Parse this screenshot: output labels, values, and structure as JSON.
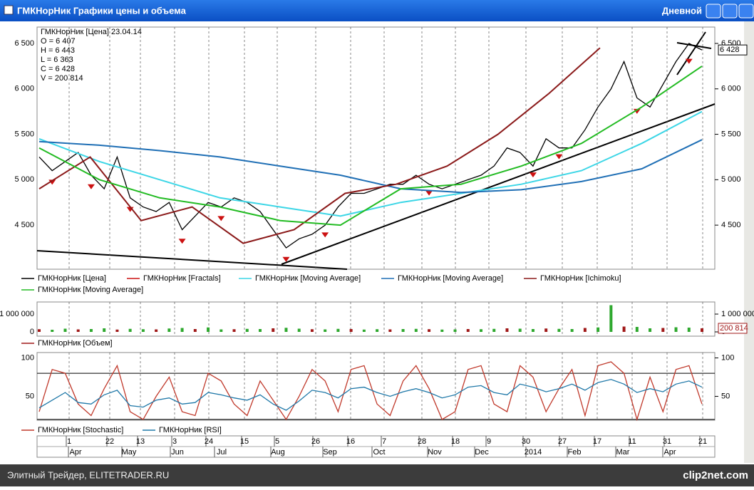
{
  "window": {
    "title": "ГМКНорНик Графики цены и объема",
    "period": "Дневной"
  },
  "chart_data": [
    {
      "type": "line",
      "info": [
        "ГМКНорНик [Цена] 23.04.14",
        "O = 6 407",
        "H = 6 443",
        "L = 6 363",
        "C = 6 428",
        "V = 200 814"
      ],
      "ylim": [
        4015,
        6680
      ],
      "yticks": [
        {
          "value": 4500,
          "label": "4 500"
        },
        {
          "value": 5000,
          "label": "5 000"
        },
        {
          "value": 5500,
          "label": "5 500"
        },
        {
          "value": 6000,
          "label": "6 000"
        },
        {
          "value": 6500,
          "label": "6 500"
        }
      ],
      "last": {
        "value": 6428,
        "label": "6 428"
      },
      "series": [
        {
          "name": "ГМКНорНик [Цена]",
          "color": "#000000",
          "values": [
            5250,
            5100,
            5200,
            5300,
            5050,
            4900,
            5250,
            4800,
            4700,
            4650,
            4750,
            4450,
            4600,
            4750,
            4700,
            4800,
            4750,
            4650,
            4450,
            4250,
            4350,
            4400,
            4500,
            4700,
            4850,
            4850,
            4900,
            4950,
            4950,
            5050,
            4950,
            4900,
            4950,
            5000,
            5050,
            5150,
            5350,
            5300,
            5150,
            5450,
            5350,
            5350,
            5550,
            5800,
            6000,
            6300,
            5900,
            5800,
            6050,
            6300,
            6500,
            6428
          ]
        },
        {
          "name": "ГМКНорНик [Fractals]",
          "color": "#cc1111",
          "marker": "arrow",
          "values": [
            null,
            5000,
            null,
            null,
            4950,
            null,
            null,
            4700,
            null,
            null,
            null,
            4350,
            null,
            null,
            4600,
            null,
            null,
            null,
            null,
            4150,
            null,
            null,
            4420,
            null,
            null,
            null,
            null,
            null,
            null,
            null,
            4880,
            null,
            null,
            null,
            null,
            null,
            null,
            null,
            5080,
            null,
            5280,
            null,
            null,
            null,
            null,
            null,
            5780,
            null,
            null,
            null,
            6330,
            null
          ]
        },
        {
          "name": "ГМКНорНик [Moving Average]",
          "color": "#3cd6e6",
          "values": [
            5450,
            5200,
            5000,
            4800,
            4700,
            4600,
            4750,
            4850,
            4950,
            5100,
            5400,
            5750
          ]
        },
        {
          "name": "ГМКНорНик [Moving Average]",
          "color": "#1f6fb5",
          "values": [
            5420,
            5380,
            5320,
            5250,
            5150,
            5050,
            4900,
            4860,
            4890,
            4980,
            5120,
            5440
          ]
        },
        {
          "name": "ГМКНорНик [Ichimoku]",
          "color": "#8b1a1a",
          "values": [
            4900,
            5250,
            4550,
            4700,
            4300,
            4450,
            4850,
            4950,
            5150,
            5500,
            5950,
            6450,
            null,
            null
          ]
        },
        {
          "name": "ГМКНорНик [Moving Average]",
          "color": "#22bb22",
          "values": [
            5350,
            5000,
            4800,
            4700,
            4550,
            4500,
            4900,
            4950,
            5150,
            5400,
            5800,
            6250
          ]
        }
      ]
    },
    {
      "type": "bar",
      "ylim": [
        -240000,
        1680000
      ],
      "yticks": [
        0,
        {
          "value": 1000000,
          "label": "1 000 000"
        }
      ],
      "last": {
        "value": 200814,
        "label": "200 814"
      },
      "series": [
        {
          "name": "ГМКНорНик [Объем]",
          "color": "#a01818",
          "values": [
            150000,
            120000,
            180000,
            140000,
            160000,
            200000,
            130000,
            170000,
            150000,
            140000,
            190000,
            220000,
            160000,
            250000,
            140000,
            150000,
            170000,
            160000,
            200000,
            230000,
            180000,
            150000,
            140000,
            170000,
            160000,
            130000,
            150000,
            140000,
            160000,
            170000,
            150000,
            130000,
            140000,
            160000,
            150000,
            170000,
            200000,
            180000,
            160000,
            190000,
            170000,
            160000,
            220000,
            250000,
            1500000,
            300000,
            280000,
            200000,
            220000,
            260000,
            240000,
            200814
          ]
        }
      ]
    },
    {
      "type": "line",
      "ylim": [
        19,
        107
      ],
      "yticks": [
        50,
        100
      ],
      "levels": [
        20,
        80
      ],
      "series": [
        {
          "name": "ГМКНорНик [Stochastic]",
          "color": "#c0392b",
          "values": [
            30,
            85,
            80,
            40,
            25,
            60,
            90,
            30,
            20,
            50,
            75,
            30,
            25,
            80,
            70,
            40,
            25,
            70,
            45,
            20,
            50,
            85,
            70,
            30,
            85,
            90,
            40,
            25,
            70,
            90,
            60,
            20,
            30,
            85,
            90,
            40,
            30,
            90,
            75,
            30,
            60,
            85,
            25,
            90,
            95,
            80,
            20,
            75,
            30,
            85,
            90,
            40
          ]
        },
        {
          "name": "ГМКНорНик [RSI]",
          "color": "#1f78a8",
          "values": [
            35,
            45,
            55,
            42,
            40,
            52,
            58,
            38,
            36,
            45,
            48,
            40,
            42,
            55,
            52,
            48,
            45,
            52,
            40,
            32,
            44,
            58,
            55,
            48,
            60,
            62,
            55,
            50,
            56,
            60,
            55,
            48,
            52,
            62,
            64,
            55,
            52,
            66,
            62,
            56,
            60,
            66,
            58,
            68,
            72,
            66,
            55,
            60,
            56,
            66,
            70,
            62
          ]
        }
      ]
    }
  ],
  "x_axis": {
    "days": [
      "1",
      "22",
      "13",
      "3",
      "24",
      "15",
      "5",
      "26",
      "16",
      "7",
      "28",
      "18",
      "9",
      "30",
      "27",
      "17",
      "11",
      "31",
      "21"
    ],
    "months": [
      "Apr",
      "May",
      "Jun",
      "Jul",
      "Aug",
      "Sep",
      "Oct",
      "Nov",
      "Dec",
      "2014",
      "Feb",
      "Mar",
      "Apr"
    ]
  },
  "status_bar": {
    "text": "Элитный Трейдер, ELITETRADER.RU",
    "logo": "clip2net.com"
  }
}
